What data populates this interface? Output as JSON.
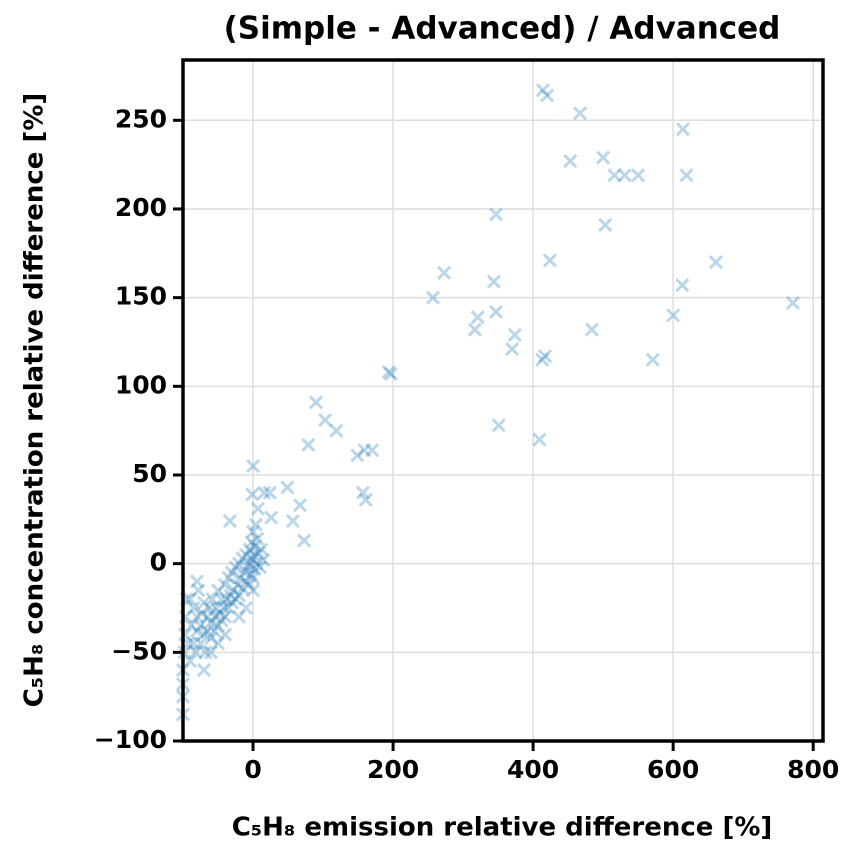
{
  "chart_data": {
    "type": "scatter",
    "title": "(Simple - Advanced) / Advanced",
    "x_label": "C₅H₈ emission relative difference [%]",
    "y_label": "C₅H₈ concentration relative difference [%]",
    "xlim": [
      -100,
      814
    ],
    "ylim": [
      -100,
      284
    ],
    "xticks": [
      0,
      200,
      400,
      600,
      800
    ],
    "yticks": [
      {
        "value": -100,
        "label": "−100"
      },
      {
        "value": -50,
        "label": "−50"
      },
      0,
      50,
      100,
      150,
      200,
      250
    ],
    "grid": true,
    "marker": "x",
    "alpha": 0.3,
    "series": [
      {
        "name": "points",
        "color": "#1f77b4",
        "x": [
          453,
          414,
          420,
          467,
          614,
          500,
          516,
          531,
          550,
          619,
          347,
          503,
          424,
          661,
          273,
          344,
          613,
          257,
          771,
          347,
          321,
          600,
          317,
          484,
          374,
          370,
          417,
          413,
          571,
          194,
          197,
          90,
          103,
          119,
          79,
          351,
          409,
          149,
          159,
          170,
          157,
          161,
          0,
          49,
          67,
          57,
          73,
          -1,
          16,
          7,
          26,
          -33,
          24,
          -100,
          -100,
          -100,
          -100,
          -98,
          -97,
          -96,
          -95,
          -92,
          -90,
          -88,
          -85,
          -85,
          -82,
          -80,
          -80,
          -78,
          -75,
          -75,
          -73,
          -70,
          -70,
          -68,
          -65,
          -65,
          -62,
          -60,
          -60,
          -58,
          -55,
          -55,
          -52,
          -50,
          -50,
          -48,
          -45,
          -45,
          -42,
          -40,
          -40,
          -38,
          -35,
          -35,
          -32,
          -30,
          -30,
          -28,
          -25,
          -25,
          -22,
          -20,
          -20,
          -18,
          -15,
          -15,
          -12,
          -10,
          -10,
          -8,
          -6,
          -5,
          -4,
          -3,
          -2,
          -1,
          0,
          0,
          1,
          2,
          3,
          4,
          5,
          6,
          8,
          10,
          12,
          -60,
          -50,
          -40,
          -70,
          -20,
          -10,
          0,
          -90,
          -80,
          15
        ],
        "values": [
          227,
          267,
          264,
          254,
          245,
          229,
          219,
          219,
          219,
          219,
          197,
          191,
          171,
          170,
          164,
          159,
          157,
          150,
          147,
          142,
          139,
          140,
          132,
          132,
          129,
          121,
          117,
          115,
          115,
          108,
          107,
          91,
          81,
          75,
          67,
          78,
          70,
          61,
          64,
          64,
          40,
          36,
          55,
          43,
          33,
          24,
          13,
          39,
          40,
          31,
          26,
          24,
          40,
          -85,
          -75,
          -68,
          -60,
          -50,
          -40,
          -30,
          -20,
          -45,
          -55,
          -35,
          -25,
          -45,
          -50,
          -38,
          -30,
          -15,
          -45,
          -35,
          -28,
          -40,
          -22,
          -50,
          -30,
          -38,
          -25,
          -42,
          -33,
          -20,
          -30,
          -38,
          -25,
          -35,
          -15,
          -28,
          -32,
          -20,
          -25,
          -30,
          -12,
          -20,
          -25,
          -8,
          -18,
          -22,
          -5,
          -15,
          -20,
          -2,
          -12,
          -18,
          0,
          -8,
          -14,
          3,
          -5,
          -10,
          5,
          -2,
          -12,
          8,
          0,
          -6,
          12,
          3,
          -8,
          18,
          5,
          -3,
          10,
          22,
          0,
          14,
          6,
          -2,
          8,
          -50,
          -45,
          -40,
          -60,
          -30,
          -25,
          -15,
          -20,
          -10,
          2
        ]
      }
    ]
  }
}
